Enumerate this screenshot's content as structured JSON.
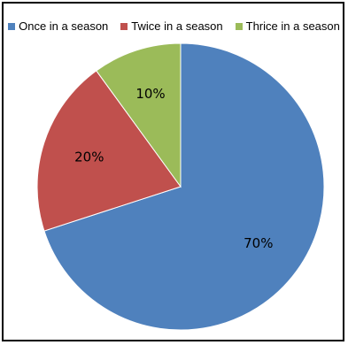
{
  "chart_data": {
    "type": "pie",
    "title": "",
    "legend_position": "top",
    "slices": [
      {
        "name": "Once in a season",
        "value": 70,
        "label": "70%",
        "color": "#4F81BD"
      },
      {
        "name": "Twice in a season",
        "value": 20,
        "label": "20%",
        "color": "#C0504D"
      },
      {
        "name": "Thrice in a season",
        "value": 10,
        "label": "10%",
        "color": "#9BBB59"
      }
    ]
  }
}
